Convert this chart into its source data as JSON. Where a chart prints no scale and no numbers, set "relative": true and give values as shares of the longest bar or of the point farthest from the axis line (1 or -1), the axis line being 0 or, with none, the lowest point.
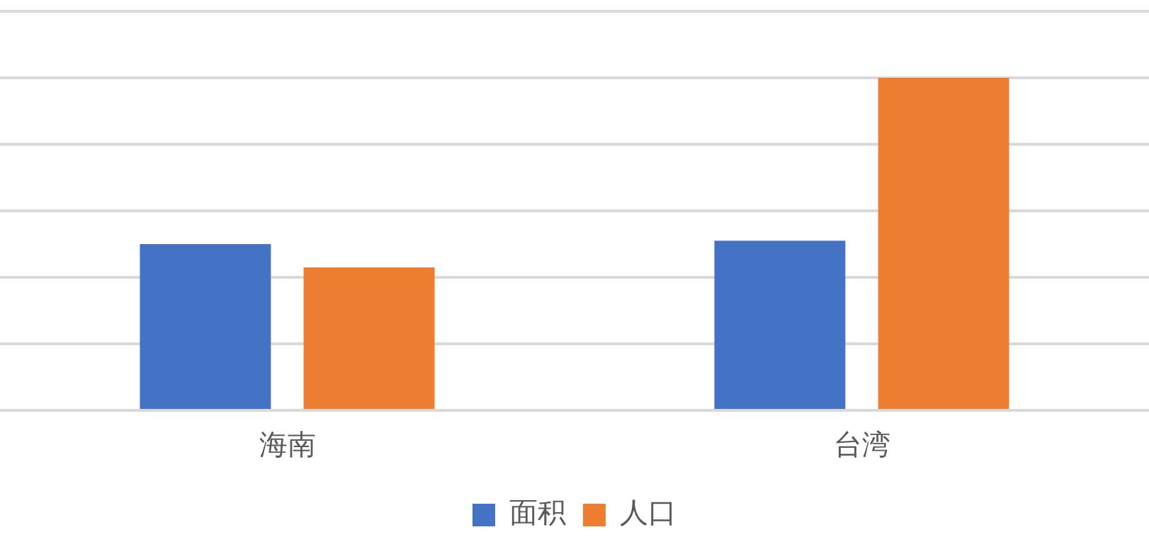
{
  "chart_data": {
    "type": "bar",
    "relative": true,
    "categories": [
      "海南",
      "台湾"
    ],
    "series": [
      {
        "name": "面积",
        "color": "#4472c4",
        "values": [
          0.5,
          0.51
        ]
      },
      {
        "name": "人口",
        "color": "#ed7d31",
        "values": [
          0.43,
          1
        ]
      }
    ],
    "grid": "y",
    "legend": "bottom"
  }
}
